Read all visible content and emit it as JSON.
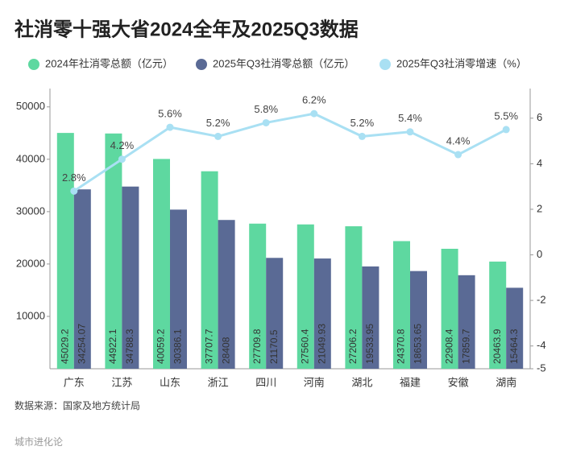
{
  "chart_data": {
    "type": "bar_line",
    "title": "社消零十强大省2024全年及2025Q3数据",
    "categories": [
      "广东",
      "江苏",
      "山东",
      "浙江",
      "四川",
      "河南",
      "湖北",
      "福建",
      "安徽",
      "湖南"
    ],
    "series": [
      {
        "name": "2024年社消零总额（亿元）",
        "color": "#5ed8a0",
        "type": "bar",
        "values": [
          45029.2,
          44922.1,
          40059.2,
          37707.7,
          27709.8,
          27560.4,
          27206.2,
          24370.8,
          22908.4,
          20463.9
        ]
      },
      {
        "name": "2025年Q3社消零总额（亿元）",
        "color": "#5a6a95",
        "type": "bar",
        "values": [
          34254.07,
          34788.3,
          30386.1,
          28408,
          21170.5,
          21049.93,
          19533.95,
          18653.65,
          17859.7,
          15464.3
        ]
      },
      {
        "name": "2025年Q3社消零增速（%）",
        "color": "#a9e0f3",
        "type": "line",
        "axis": "y2",
        "values": [
          2.8,
          4.2,
          5.6,
          5.2,
          5.8,
          6.2,
          5.2,
          5.4,
          4.4,
          5.5
        ],
        "value_labels": [
          "2.8%",
          "4.2%",
          "5.6%",
          "5.2%",
          "5.8%",
          "6.2%",
          "5.2%",
          "5.4%",
          "4.4%",
          "5.5%"
        ]
      }
    ],
    "ylim": [
      0,
      53500
    ],
    "yticks": [
      10000,
      20000,
      30000,
      40000,
      50000
    ],
    "y2lim": [
      -5,
      7.3
    ],
    "y2ticks": [
      -5,
      -4,
      -2,
      0,
      2,
      4,
      6
    ],
    "grid": false,
    "source": "数据来源：国家及地方统计局",
    "footer": "城市进化论"
  }
}
